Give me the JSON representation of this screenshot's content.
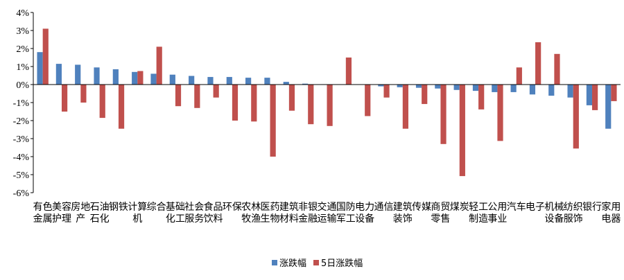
{
  "chart_data": {
    "type": "bar",
    "title": "",
    "xlabel": "",
    "ylabel": "",
    "ylim": [
      -6,
      4
    ],
    "yticks": [
      "4%",
      "3%",
      "2%",
      "1%",
      "0%",
      "-1%",
      "-2%",
      "-3%",
      "-4%",
      "-5%",
      "-6%"
    ],
    "grid": false,
    "legend_position": "bottom",
    "categories": [
      "有色金属",
      "美容护理",
      "房地产",
      "石油石化",
      "钢铁",
      "计算机",
      "综合",
      "基础化工",
      "社会服务",
      "食品饮料",
      "环保",
      "农林牧渔",
      "医药生物",
      "建筑材料",
      "非银金融",
      "交通运输",
      "国防军工",
      "电力设备",
      "通信",
      "建筑装饰",
      "传媒",
      "商贸零售",
      "煤炭",
      "轻工制造",
      "公用事业",
      "汽车",
      "电子",
      "机械设备",
      "纺织服饰",
      "银行",
      "家用电器"
    ],
    "series": [
      {
        "name": "涨跌幅",
        "color": "#4f81bd",
        "values": [
          1.8,
          1.15,
          1.1,
          0.95,
          0.85,
          0.7,
          0.6,
          0.55,
          0.48,
          0.42,
          0.42,
          0.38,
          0.38,
          0.15,
          0.05,
          0.02,
          0.0,
          0.0,
          -0.1,
          -0.15,
          -0.18,
          -0.22,
          -0.3,
          -0.35,
          -0.42,
          -0.42,
          -0.55,
          -0.62,
          -0.72,
          -1.15,
          -2.45
        ]
      },
      {
        "name": "5日涨跌幅",
        "color": "#c0504d",
        "values": [
          3.1,
          -1.5,
          -1.0,
          -1.85,
          -2.45,
          0.75,
          2.1,
          -1.2,
          -1.3,
          -0.72,
          -2.0,
          -2.05,
          -4.0,
          -1.45,
          -2.2,
          -2.3,
          1.5,
          -1.75,
          -0.72,
          -2.45,
          -1.08,
          -3.3,
          -5.08,
          -1.38,
          -3.13,
          0.95,
          2.35,
          1.7,
          -3.55,
          -1.42,
          -0.92
        ]
      }
    ]
  }
}
